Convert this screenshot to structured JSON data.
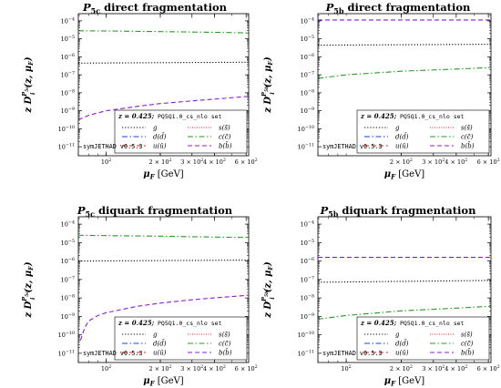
{
  "figure": {
    "background": "#ffffff"
  },
  "chart_data": [
    {
      "type": "line",
      "title": "P_{5c} direct fragmentation",
      "title_parts": {
        "main": "P",
        "sub": "5c",
        "rest": " direct fragmentation"
      },
      "ylabel": "z D_i^{P_{5c}}(z, μ_F)",
      "ylabel_parts": {
        "sup_sub": "5c"
      },
      "xlabel": "μ_F [GeV]",
      "xscale": "log",
      "yscale": "log",
      "xlim": [
        70,
        620
      ],
      "ylim_exp": [
        -11.5,
        -3.6
      ],
      "x_ticks": [
        {
          "v": 100,
          "mant": "10",
          "exp": "2"
        },
        {
          "v": 200,
          "mant": "2 × 10",
          "exp": "2"
        },
        {
          "v": 300,
          "mant": "3 × 10",
          "exp": "2"
        },
        {
          "v": 400,
          "mant": "4 × 10",
          "exp": "2"
        },
        {
          "v": 600,
          "mant": "6 × 10",
          "exp": "2"
        }
      ],
      "y_ticks": [
        {
          "e": -4,
          "label": "10",
          "exp": "−4"
        },
        {
          "e": -5,
          "label": "10",
          "exp": "−5"
        },
        {
          "e": -6,
          "label": "10",
          "exp": "−6"
        },
        {
          "e": -7,
          "label": "10",
          "exp": "−7"
        },
        {
          "e": -8,
          "label": "10",
          "exp": "−8"
        },
        {
          "e": -9,
          "label": "10",
          "exp": "−9"
        },
        {
          "e": -10,
          "label": "10",
          "exp": "−10"
        },
        {
          "e": -11,
          "label": "10",
          "exp": "−11"
        }
      ],
      "legend_title": "z = 0.425;",
      "legend_set": "PQ5Q1.0_cs_nlo set",
      "legend_position": "bottom-right",
      "watermark": "symJETHAD v0.5.3",
      "series": [
        {
          "name": "g",
          "color": "#000000",
          "dash": "dotted",
          "x": [
            70,
            620
          ],
          "log10_y": [
            -6.35,
            -6.3
          ]
        },
        {
          "name": "d(d̄)",
          "color": "#1f3fd6",
          "dash": "dashdot",
          "x": [],
          "log10_y": []
        },
        {
          "name": "u(ū)",
          "color": "#e8201c",
          "dash": "dashed",
          "x": [],
          "log10_y": []
        },
        {
          "name": "s(s̄)",
          "color": "#e8201c",
          "dash": "finedot",
          "x": [],
          "log10_y": []
        },
        {
          "name": "c(c̄)",
          "color": "#2a9a2a",
          "dash": "dashdot",
          "x": [
            70,
            100,
            200,
            400,
            620
          ],
          "log10_y": [
            -4.55,
            -4.56,
            -4.6,
            -4.64,
            -4.67
          ]
        },
        {
          "name": "b(b̄)",
          "color": "#8a1fd0",
          "dash": "dashed",
          "x": [
            70,
            80,
            100,
            150,
            200,
            300,
            400,
            620
          ],
          "log10_y": [
            -9.5,
            -9.25,
            -9.0,
            -8.75,
            -8.6,
            -8.45,
            -8.35,
            -8.2
          ]
        }
      ]
    },
    {
      "type": "line",
      "title": "P_{5b} direct fragmentation",
      "title_parts": {
        "main": "P",
        "sub": "5b",
        "rest": " direct fragmentation"
      },
      "ylabel": "z D_i^{P_{5b}}(z, μ_F)",
      "ylabel_parts": {
        "sup_sub": "5b"
      },
      "xlabel": "μ_F [GeV]",
      "xscale": "log",
      "yscale": "log",
      "xlim": [
        70,
        620
      ],
      "ylim_exp": [
        -11.5,
        -3.6
      ],
      "x_ticks": [
        {
          "v": 200,
          "mant": "2 × 10",
          "exp": "2"
        },
        {
          "v": 300,
          "mant": "3 × 10",
          "exp": "2"
        },
        {
          "v": 400,
          "mant": "4 × 10",
          "exp": "2"
        },
        {
          "v": 600,
          "mant": "6 × 10",
          "exp": "2"
        }
      ],
      "y_ticks": [
        {
          "e": -4,
          "label": "10",
          "exp": "−4"
        },
        {
          "e": -5,
          "label": "10",
          "exp": "−5"
        },
        {
          "e": -6,
          "label": "10",
          "exp": "−6"
        },
        {
          "e": -7,
          "label": "10",
          "exp": "−7"
        },
        {
          "e": -8,
          "label": "10",
          "exp": "−8"
        },
        {
          "e": -9,
          "label": "10",
          "exp": "−9"
        },
        {
          "e": -10,
          "label": "10",
          "exp": "−10"
        },
        {
          "e": -11,
          "label": "10",
          "exp": "−11"
        }
      ],
      "legend_title": "z = 0.425;",
      "legend_set": "PQ5Q1.0_cs_nlo set",
      "legend_position": "bottom-right",
      "watermark": "symJETHAD v0.5.3",
      "series": [
        {
          "name": "g",
          "color": "#000000",
          "dash": "dotted",
          "x": [
            70,
            620
          ],
          "log10_y": [
            -5.35,
            -5.3
          ]
        },
        {
          "name": "d(d̄)",
          "color": "#1f3fd6",
          "dash": "dashdot",
          "x": [],
          "log10_y": []
        },
        {
          "name": "u(ū)",
          "color": "#e8201c",
          "dash": "dashed",
          "x": [],
          "log10_y": []
        },
        {
          "name": "s(s̄)",
          "color": "#e8201c",
          "dash": "finedot",
          "x": [],
          "log10_y": []
        },
        {
          "name": "c(c̄)",
          "color": "#2a9a2a",
          "dash": "dashdot",
          "x": [
            70,
            100,
            200,
            400,
            620
          ],
          "log10_y": [
            -7.2,
            -7.0,
            -6.8,
            -6.68,
            -6.6
          ]
        },
        {
          "name": "b(b̄)",
          "color": "#8a1fd0",
          "dash": "dashed",
          "x": [
            70,
            620
          ],
          "log10_y": [
            -3.95,
            -3.95
          ]
        }
      ]
    },
    {
      "type": "line",
      "title": "P_{5c} diquark fragmentation",
      "title_parts": {
        "main": "P",
        "sub": "5c",
        "rest": " diquark fragmentation"
      },
      "ylabel": "z D_i^{P_{5c}}(z, μ_F)",
      "ylabel_parts": {
        "sup_sub": "5c"
      },
      "xlabel": "μ_F [GeV]",
      "xscale": "log",
      "yscale": "log",
      "xlim": [
        70,
        620
      ],
      "ylim_exp": [
        -11.5,
        -3.6
      ],
      "x_ticks": [
        {
          "v": 100,
          "mant": "10",
          "exp": "2"
        },
        {
          "v": 200,
          "mant": "2 × 10",
          "exp": "2"
        },
        {
          "v": 300,
          "mant": "3 × 10",
          "exp": "2"
        },
        {
          "v": 400,
          "mant": "4 × 10",
          "exp": "2"
        },
        {
          "v": 600,
          "mant": "6 × 10",
          "exp": "2"
        }
      ],
      "y_ticks": [
        {
          "e": -4,
          "label": "10",
          "exp": "−4"
        },
        {
          "e": -5,
          "label": "10",
          "exp": "−5"
        },
        {
          "e": -6,
          "label": "10",
          "exp": "−6"
        },
        {
          "e": -7,
          "label": "10",
          "exp": "−7"
        },
        {
          "e": -8,
          "label": "10",
          "exp": "−8"
        },
        {
          "e": -9,
          "label": "10",
          "exp": "−9"
        },
        {
          "e": -10,
          "label": "10",
          "exp": "−10"
        },
        {
          "e": -11,
          "label": "10",
          "exp": "−11"
        }
      ],
      "legend_title": "z = 0.425;",
      "legend_set": "PQ5Q1.0_cs_nlo set",
      "legend_position": "bottom-right",
      "watermark": "symJETHAD v0.5.3",
      "series": [
        {
          "name": "g",
          "color": "#000000",
          "dash": "dotted",
          "x": [
            70,
            620
          ],
          "log10_y": [
            -6.0,
            -5.95
          ]
        },
        {
          "name": "d(d̄)",
          "color": "#1f3fd6",
          "dash": "dashdot",
          "x": [],
          "log10_y": []
        },
        {
          "name": "u(ū)",
          "color": "#e8201c",
          "dash": "dashed",
          "x": [],
          "log10_y": []
        },
        {
          "name": "s(s̄)",
          "color": "#e8201c",
          "dash": "finedot",
          "x": [],
          "log10_y": []
        },
        {
          "name": "c(c̄)",
          "color": "#2a9a2a",
          "dash": "dashdot",
          "x": [
            70,
            100,
            200,
            400,
            620
          ],
          "log10_y": [
            -4.6,
            -4.62,
            -4.65,
            -4.7,
            -4.72
          ]
        },
        {
          "name": "b(b̄)",
          "color": "#8a1fd0",
          "dash": "dashed",
          "x": [
            72,
            76,
            80,
            90,
            100,
            150,
            200,
            300,
            400,
            620
          ],
          "log10_y": [
            -10.3,
            -9.6,
            -9.25,
            -8.95,
            -8.8,
            -8.45,
            -8.28,
            -8.1,
            -8.0,
            -7.85
          ]
        }
      ]
    },
    {
      "type": "line",
      "title": "P_{5b} diquark fragmentation",
      "title_parts": {
        "main": "P",
        "sub": "5b",
        "rest": " diquark fragmentation"
      },
      "ylabel": "z D_i^{P_{5b}}(z, μ_F)",
      "ylabel_parts": {
        "sup_sub": "5b"
      },
      "xlabel": "μ_F [GeV]",
      "xscale": "log",
      "yscale": "log",
      "xlim": [
        70,
        620
      ],
      "ylim_exp": [
        -11.5,
        -3.6
      ],
      "x_ticks": [
        {
          "v": 100,
          "mant": "10",
          "exp": "2"
        },
        {
          "v": 200,
          "mant": "2 × 10",
          "exp": "2"
        },
        {
          "v": 300,
          "mant": "3 × 10",
          "exp": "2"
        },
        {
          "v": 400,
          "mant": "4 × 10",
          "exp": "2"
        },
        {
          "v": 600,
          "mant": "6 × 10",
          "exp": "2"
        }
      ],
      "y_ticks": [
        {
          "e": -4,
          "label": "10",
          "exp": "−4"
        },
        {
          "e": -5,
          "label": "10",
          "exp": "−5"
        },
        {
          "e": -6,
          "label": "10",
          "exp": "−6"
        },
        {
          "e": -7,
          "label": "10",
          "exp": "−7"
        },
        {
          "e": -8,
          "label": "10",
          "exp": "−8"
        },
        {
          "e": -9,
          "label": "10",
          "exp": "−9"
        },
        {
          "e": -10,
          "label": "10",
          "exp": "−10"
        },
        {
          "e": -11,
          "label": "10",
          "exp": "−11"
        }
      ],
      "legend_title": "z = 0.425;",
      "legend_set": "PQ5Q1.0_cs_nlo set",
      "legend_position": "bottom-right",
      "watermark": "symJETHAD v0.5.3",
      "series": [
        {
          "name": "g",
          "color": "#000000",
          "dash": "dotted",
          "x": [
            70,
            620
          ],
          "log10_y": [
            -7.15,
            -7.05
          ]
        },
        {
          "name": "d(d̄)",
          "color": "#1f3fd6",
          "dash": "dashdot",
          "x": [],
          "log10_y": []
        },
        {
          "name": "u(ū)",
          "color": "#e8201c",
          "dash": "dashed",
          "x": [],
          "log10_y": []
        },
        {
          "name": "s(s̄)",
          "color": "#e8201c",
          "dash": "finedot",
          "x": [],
          "log10_y": []
        },
        {
          "name": "c(c̄)",
          "color": "#2a9a2a",
          "dash": "dashdot",
          "x": [
            70,
            100,
            200,
            400,
            620
          ],
          "log10_y": [
            -9.15,
            -8.95,
            -8.7,
            -8.55,
            -8.45
          ]
        },
        {
          "name": "b(b̄)",
          "color": "#8a1fd0",
          "dash": "dashed",
          "x": [
            70,
            620
          ],
          "log10_y": [
            -5.8,
            -5.8
          ]
        }
      ]
    }
  ]
}
